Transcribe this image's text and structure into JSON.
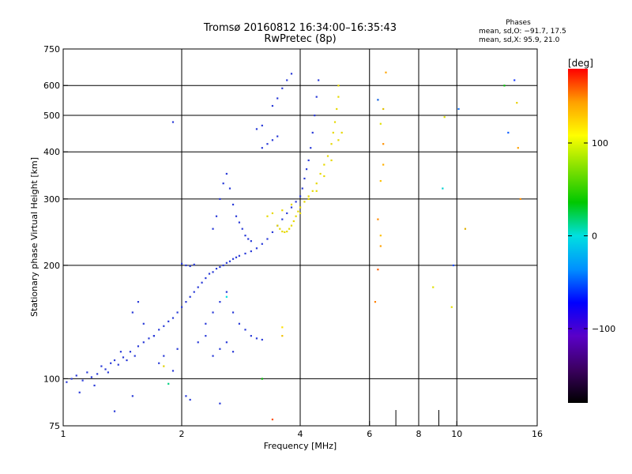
{
  "chart_data": {
    "type": "scatter",
    "title": "Tromsø 20160812 16:34:00–16:35:43",
    "subtitle": "RwPretec (8p)",
    "xlabel": "Frequency [MHz]",
    "ylabel": "Stationary phase Virtual Height [km]",
    "x_scale": "log",
    "y_scale": "log",
    "xlim": [
      1,
      16
    ],
    "ylim": [
      75,
      750
    ],
    "x_ticks": [
      1,
      2,
      4,
      6,
      8,
      10,
      16
    ],
    "x_minor_ticks": [
      7,
      9
    ],
    "y_ticks": [
      75,
      100,
      200,
      300,
      400,
      500,
      600,
      750
    ],
    "grid": true,
    "stats": {
      "heading": "Phases",
      "line1": "mean, sd,O: −91.7, 17.5",
      "line2": "mean, sd,X:  95.9, 21.0"
    },
    "colorbar": {
      "label": "[deg]",
      "range": [
        -180,
        180
      ],
      "ticks": [
        100,
        0,
        -100
      ],
      "palette": [
        "#000000",
        "#3b0060",
        "#5a00c8",
        "#0000ff",
        "#0090ff",
        "#00e0e0",
        "#00c800",
        "#80e000",
        "#ffff00",
        "#ffa000",
        "#ff0000"
      ]
    },
    "series": [
      {
        "role": "O-mode",
        "phase": -100,
        "color": "#2a3bd8",
        "points": [
          [
            1.02,
            98
          ],
          [
            1.05,
            100
          ],
          [
            1.08,
            102
          ],
          [
            1.12,
            99
          ],
          [
            1.15,
            104
          ],
          [
            1.18,
            101
          ],
          [
            1.22,
            103
          ],
          [
            1.25,
            108
          ],
          [
            1.28,
            106
          ],
          [
            1.32,
            110
          ],
          [
            1.35,
            112
          ],
          [
            1.38,
            109
          ],
          [
            1.42,
            114
          ],
          [
            1.45,
            112
          ],
          [
            1.48,
            118
          ],
          [
            1.52,
            115
          ],
          [
            1.55,
            122
          ],
          [
            1.6,
            125
          ],
          [
            1.65,
            128
          ],
          [
            1.7,
            130
          ],
          [
            1.75,
            135
          ],
          [
            1.8,
            138
          ],
          [
            1.85,
            142
          ],
          [
            1.9,
            145
          ],
          [
            1.95,
            150
          ],
          [
            2.0,
            155
          ],
          [
            2.05,
            160
          ],
          [
            2.1,
            165
          ],
          [
            2.15,
            170
          ],
          [
            2.2,
            175
          ],
          [
            2.25,
            180
          ],
          [
            2.3,
            185
          ],
          [
            2.35,
            190
          ],
          [
            2.4,
            192
          ],
          [
            2.45,
            196
          ],
          [
            2.5,
            198
          ],
          [
            2.55,
            200
          ],
          [
            2.6,
            203
          ],
          [
            2.65,
            205
          ],
          [
            2.7,
            208
          ],
          [
            2.75,
            210
          ],
          [
            2.8,
            212
          ],
          [
            2.9,
            215
          ],
          [
            3.0,
            218
          ],
          [
            3.1,
            222
          ],
          [
            3.2,
            228
          ],
          [
            3.3,
            235
          ],
          [
            3.4,
            245
          ],
          [
            3.5,
            255
          ],
          [
            3.6,
            265
          ],
          [
            3.7,
            275
          ],
          [
            3.8,
            285
          ],
          [
            3.9,
            295
          ],
          [
            4.0,
            305
          ],
          [
            4.05,
            320
          ],
          [
            4.1,
            340
          ],
          [
            4.15,
            360
          ],
          [
            4.2,
            380
          ],
          [
            4.25,
            410
          ],
          [
            4.3,
            450
          ],
          [
            4.35,
            500
          ],
          [
            4.4,
            560
          ],
          [
            4.45,
            620
          ],
          [
            2.0,
            202
          ],
          [
            2.05,
            200
          ],
          [
            2.1,
            199
          ],
          [
            2.15,
            201
          ],
          [
            2.4,
            250
          ],
          [
            2.45,
            270
          ],
          [
            2.5,
            300
          ],
          [
            2.55,
            330
          ],
          [
            2.6,
            350
          ],
          [
            2.65,
            320
          ],
          [
            2.7,
            290
          ],
          [
            2.75,
            270
          ],
          [
            2.8,
            260
          ],
          [
            2.85,
            250
          ],
          [
            2.9,
            240
          ],
          [
            2.95,
            235
          ],
          [
            3.0,
            232
          ],
          [
            2.3,
            140
          ],
          [
            2.4,
            150
          ],
          [
            2.5,
            160
          ],
          [
            2.6,
            170
          ],
          [
            2.7,
            150
          ],
          [
            2.8,
            140
          ],
          [
            2.9,
            135
          ],
          [
            3.0,
            130
          ],
          [
            3.1,
            128
          ],
          [
            3.2,
            127
          ],
          [
            2.2,
            125
          ],
          [
            2.3,
            130
          ],
          [
            2.4,
            115
          ],
          [
            2.5,
            120
          ],
          [
            2.6,
            125
          ],
          [
            2.7,
            118
          ],
          [
            3.4,
            530
          ],
          [
            3.5,
            555
          ],
          [
            3.6,
            590
          ],
          [
            3.7,
            620
          ],
          [
            3.8,
            645
          ],
          [
            3.2,
            410
          ],
          [
            3.3,
            420
          ],
          [
            3.4,
            430
          ],
          [
            3.5,
            440
          ],
          [
            3.1,
            460
          ],
          [
            3.2,
            470
          ],
          [
            1.5,
            150
          ],
          [
            1.55,
            160
          ],
          [
            1.6,
            140
          ],
          [
            1.7,
            130
          ],
          [
            1.75,
            110
          ],
          [
            1.8,
            115
          ],
          [
            1.9,
            105
          ],
          [
            1.95,
            120
          ],
          [
            1.4,
            118
          ],
          [
            1.3,
            104
          ],
          [
            1.2,
            96
          ],
          [
            1.1,
            92
          ],
          [
            1.9,
            480
          ],
          [
            2.05,
            90
          ],
          [
            2.1,
            88
          ],
          [
            2.5,
            86
          ],
          [
            1.35,
            82
          ],
          [
            1.5,
            90
          ]
        ]
      },
      {
        "role": "X-mode",
        "phase": 100,
        "color": "#e6d800",
        "points": [
          [
            3.5,
            255
          ],
          [
            3.55,
            250
          ],
          [
            3.6,
            246
          ],
          [
            3.65,
            245
          ],
          [
            3.7,
            246
          ],
          [
            3.75,
            250
          ],
          [
            3.8,
            255
          ],
          [
            3.85,
            262
          ],
          [
            3.9,
            270
          ],
          [
            3.95,
            278
          ],
          [
            4.0,
            285
          ],
          [
            4.1,
            295
          ],
          [
            4.2,
            305
          ],
          [
            4.3,
            315
          ],
          [
            4.4,
            330
          ],
          [
            4.5,
            350
          ],
          [
            4.6,
            370
          ],
          [
            4.7,
            390
          ],
          [
            4.8,
            420
          ],
          [
            4.85,
            450
          ],
          [
            4.9,
            480
          ],
          [
            4.95,
            520
          ],
          [
            5.0,
            560
          ],
          [
            5.0,
            600
          ],
          [
            3.3,
            270
          ],
          [
            3.4,
            275
          ],
          [
            3.6,
            280
          ],
          [
            3.8,
            290
          ],
          [
            4.0,
            275
          ],
          [
            4.2,
            300
          ],
          [
            4.4,
            315
          ],
          [
            4.6,
            345
          ],
          [
            4.8,
            380
          ],
          [
            5.0,
            430
          ],
          [
            5.1,
            450
          ]
        ]
      },
      {
        "role": "sparse",
        "points": [
          [
            6.3,
            265
          ],
          [
            6.4,
            240
          ],
          [
            6.4,
            225
          ],
          [
            6.5,
            420
          ],
          [
            6.5,
            370
          ],
          [
            6.5,
            520
          ],
          [
            6.6,
            650
          ],
          [
            6.2,
            160
          ],
          [
            6.3,
            195
          ],
          [
            6.3,
            550
          ],
          [
            6.4,
            475
          ],
          [
            9.8,
            200
          ],
          [
            9.7,
            155
          ],
          [
            9.2,
            320
          ],
          [
            8.7,
            175
          ],
          [
            10.1,
            520
          ],
          [
            10.5,
            250
          ],
          [
            13.2,
            600
          ],
          [
            13.5,
            450
          ],
          [
            14.0,
            620
          ],
          [
            14.2,
            540
          ],
          [
            14.3,
            410
          ],
          [
            14.5,
            300
          ],
          [
            3.6,
            130
          ],
          [
            3.6,
            137
          ],
          [
            3.2,
            100
          ],
          [
            3.4,
            78
          ],
          [
            1.8,
            108
          ],
          [
            1.85,
            97
          ],
          [
            2.6,
            165
          ],
          [
            6.4,
            335
          ],
          [
            9.3,
            495
          ]
        ],
        "colors": [
          "#ff8c00",
          "#ffc000",
          "#ffa000",
          "#ff9000",
          "#ffb000",
          "#e0c000",
          "#ffa500",
          "#ff8000",
          "#ff6000",
          "#1060e0",
          "#e0e000",
          "#2050ff",
          "#e8e000",
          "#00d0d0",
          "#e0e000",
          "#1070ff",
          "#e0b000",
          "#00c000",
          "#1060ff",
          "#2040ff",
          "#e8d000",
          "#ffa000",
          "#ff8c00",
          "#f0c000",
          "#ffe000",
          "#00b000",
          "#ff5000",
          "#e0d000",
          "#00d080",
          "#00e0e0",
          "#ffc000",
          "#e0e000"
        ]
      }
    ]
  }
}
